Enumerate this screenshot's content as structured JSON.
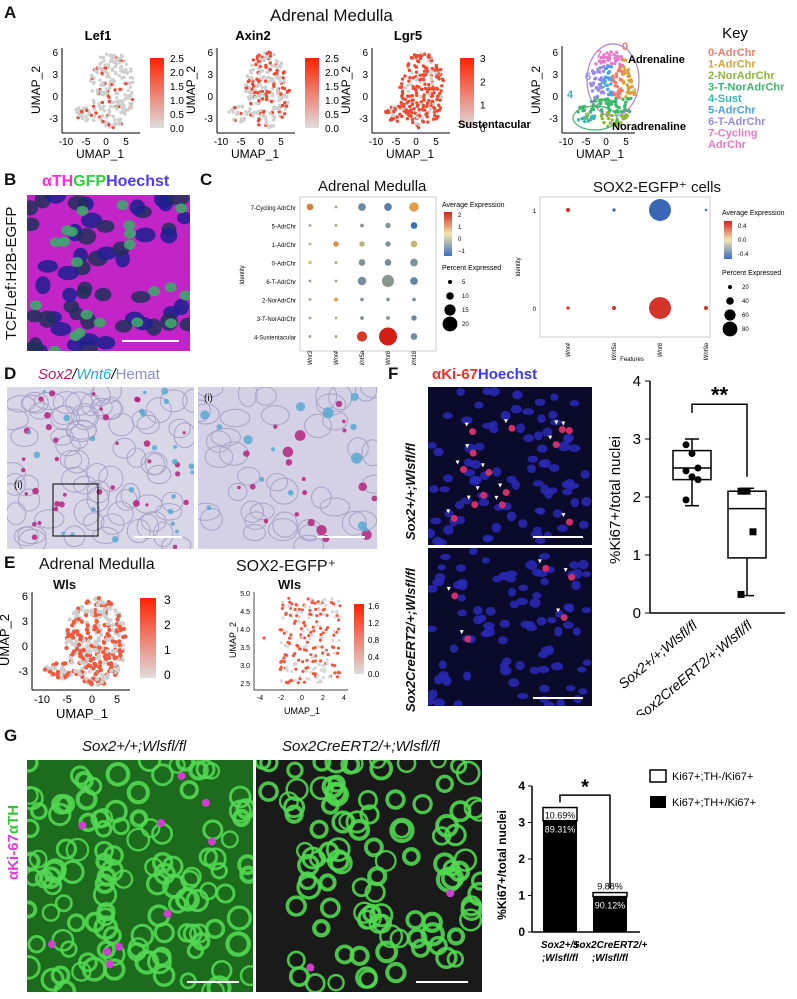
{
  "panels": {
    "A": {
      "letter": "A",
      "title": "Adrenal Medulla",
      "umaps": [
        {
          "gene": "Lef1",
          "scale_ticks": [
            "2.5",
            "2.0",
            "1.5",
            "1.0",
            "0.5",
            "0.0"
          ]
        },
        {
          "gene": "Axin2",
          "scale_ticks": [
            "2.5",
            "2.0",
            "1.5",
            "1.0",
            "0.5",
            "0.0"
          ]
        },
        {
          "gene": "Lgr5",
          "scale_ticks": [
            "3",
            "2",
            "1",
            "0"
          ]
        }
      ],
      "key_title": "Key",
      "xlabel": "UMAP_1",
      "ylabel": "UMAP_2",
      "x_ticks": [
        "-10",
        "-5",
        "0",
        "5"
      ],
      "y_ticks": [
        "6",
        "3",
        "0",
        "-3"
      ],
      "key_regions": {
        "adr": "Adrenaline",
        "sus": "Sustentacular",
        "nor": "Noradrenaline"
      },
      "key_cluster_numbers": [
        "0",
        "1",
        "2",
        "3",
        "4",
        "5",
        "6",
        "7"
      ],
      "key_legend": [
        {
          "label": "0-AdrChr",
          "color": "#f07c6c"
        },
        {
          "label": "1-AdrChr",
          "color": "#d9a23a"
        },
        {
          "label": "2-NorAdrChr",
          "color": "#8bb83a"
        },
        {
          "label": "3-T-NorAdrChr",
          "color": "#3fb66c"
        },
        {
          "label": "4-Sust",
          "color": "#35b9b0"
        },
        {
          "label": "5-AdrChr",
          "color": "#4aa3e0"
        },
        {
          "label": "6-T-AdrChr",
          "color": "#9b8ce0"
        },
        {
          "label": "7-Cycling",
          "color": "#e67ac6"
        },
        {
          "label": "AdrChr",
          "color": "#e67ac6"
        }
      ]
    },
    "B": {
      "letter": "B",
      "stain": {
        "a": "αTH",
        "b": "GFP",
        "c": "Hoechst"
      },
      "side_label": "TCF/Lef:H2B-EGFP"
    },
    "C": {
      "letter": "C",
      "left_title": "Adrenal Medulla",
      "right_title": "SOX2-EGFP⁺ cells",
      "ylabel": "Identity",
      "xlabel": "Features",
      "avg_expr_title": "Average Expression",
      "pct_expr_title": "Percent Expressed",
      "left_avg_ticks": [
        "2",
        "1",
        "0",
        "−1"
      ],
      "left_pct_ticks": [
        "5",
        "10",
        "15",
        "20"
      ],
      "right_avg_ticks": [
        "0.4",
        "0.0",
        "-0.4"
      ],
      "right_pct_ticks": [
        "20",
        "40",
        "60",
        "80"
      ]
    },
    "D": {
      "letter": "D",
      "stain": {
        "a": "Sox2",
        "sep1": "/",
        "b": "Wnt6",
        "sep2": "/",
        "c": "Hemat"
      },
      "inset_label": "(i)",
      "inset_label2": "(i)"
    },
    "E": {
      "letter": "E",
      "left_title": "Adrenal Medulla",
      "left_gene": "Wls",
      "right_title": "SOX2-EGFP⁺",
      "right_gene": "Wls",
      "xlabel": "UMAP_1",
      "ylabel": "UMAP_2",
      "left_scale": [
        "3",
        "2",
        "1",
        "0"
      ],
      "right_scale": [
        "1.6",
        "1.2",
        "0.8",
        "0.4",
        "0.0"
      ],
      "left_x_ticks": [
        "-10",
        "-5",
        "0",
        "5"
      ],
      "left_y_ticks": [
        "6",
        "3",
        "0",
        "-3"
      ],
      "right_x_ticks": [
        "-4",
        "-2",
        "0",
        "2",
        "4"
      ],
      "right_y_ticks": [
        "5.0",
        "4.5",
        "4.0",
        "3.5",
        "3.0",
        "2.5"
      ]
    },
    "F": {
      "letter": "F",
      "stain": {
        "a": "αKi-67",
        "b": "Hoechst"
      },
      "row1_label": "Sox2+/+;Wlsfl/fl",
      "row2_label": "Sox2CreERT2/+;Wlsfl/fl",
      "ylabel": "%Ki67+/total nuclei",
      "significance": "**",
      "y_ticks": [
        "0",
        "1",
        "2",
        "3",
        "4"
      ],
      "x_labels": [
        "Sox2+/+;Wlsfl/fl",
        "Sox2CreERT2/+;Wlsfl/fl"
      ]
    },
    "G": {
      "letter": "G",
      "col1_label": "Sox2+/+;Wlsfl/fl",
      "col2_label": "Sox2CreERT2/+;Wlsfl/fl",
      "side_stain": {
        "a": "αKi-67",
        "b": "αTH"
      },
      "ylabel": "%Ki67+/total nuclei",
      "significance": "*",
      "legend": [
        "Ki67+;TH-/Ki67+",
        "Ki67+;TH+/Ki67+"
      ],
      "bar_labels": [
        {
          "top": "10.69%",
          "bottom": "89.31%"
        },
        {
          "top": "9.88%",
          "bottom": "90.12%"
        }
      ],
      "x_labels": [
        {
          "line1": "Sox2+/+",
          "line2": ";Wlsfl/fl"
        },
        {
          "line1": "Sox2CreERT2/+",
          "line2": ";Wlsfl/fl"
        }
      ],
      "y_ticks": [
        "0",
        "1",
        "2",
        "3",
        "4"
      ]
    }
  },
  "chart_data": [
    {
      "type": "scatter",
      "title": "Adrenal Medulla dot plot",
      "xlabel": "Features",
      "ylabel": "Identity",
      "features": [
        "Wnt3",
        "Wnt4",
        "Wnt5a",
        "Wnt6",
        "Wnt16"
      ],
      "identities": [
        "7-Cycling AdrChr",
        "5-AdrChr",
        "1-AdrChr",
        "0-AdrChr",
        "6-T-AdrChr",
        "2-NorAdrChr",
        "3-T-NorAdrChr",
        "4-Sustentacular"
      ],
      "points": [
        {
          "identity": "7-Cycling AdrChr",
          "feature": "Wnt3",
          "pct": 3,
          "avg": 1.5
        },
        {
          "identity": "7-Cycling AdrChr",
          "feature": "Wnt4",
          "pct": 0.5,
          "avg": 0
        },
        {
          "identity": "7-Cycling AdrChr",
          "feature": "Wnt5a",
          "pct": 4,
          "avg": -0.5
        },
        {
          "identity": "7-Cycling AdrChr",
          "feature": "Wnt6",
          "pct": 4,
          "avg": -0.7
        },
        {
          "identity": "7-Cycling AdrChr",
          "feature": "Wnt16",
          "pct": 6,
          "avg": 1.2
        },
        {
          "identity": "5-AdrChr",
          "feature": "Wnt3",
          "pct": 0.5,
          "avg": 0
        },
        {
          "identity": "5-AdrChr",
          "feature": "Wnt4",
          "pct": 0.5,
          "avg": 0
        },
        {
          "identity": "5-AdrChr",
          "feature": "Wnt5a",
          "pct": 1,
          "avg": -0.2
        },
        {
          "identity": "5-AdrChr",
          "feature": "Wnt6",
          "pct": 2,
          "avg": -0.3
        },
        {
          "identity": "5-AdrChr",
          "feature": "Wnt16",
          "pct": 3,
          "avg": -1
        },
        {
          "identity": "1-AdrChr",
          "feature": "Wnt3",
          "pct": 0.5,
          "avg": 0.2
        },
        {
          "identity": "1-AdrChr",
          "feature": "Wnt4",
          "pct": 2,
          "avg": 1.4
        },
        {
          "identity": "1-AdrChr",
          "feature": "Wnt5a",
          "pct": 2,
          "avg": 0.3
        },
        {
          "identity": "1-AdrChr",
          "feature": "Wnt6",
          "pct": 2,
          "avg": -0.3
        },
        {
          "identity": "1-AdrChr",
          "feature": "Wnt16",
          "pct": 3,
          "avg": 0.4
        },
        {
          "identity": "0-AdrChr",
          "feature": "Wnt3",
          "pct": 1,
          "avg": 0.7
        },
        {
          "identity": "0-AdrChr",
          "feature": "Wnt4",
          "pct": 0.5,
          "avg": 0
        },
        {
          "identity": "0-AdrChr",
          "feature": "Wnt5a",
          "pct": 3,
          "avg": -0.3
        },
        {
          "identity": "0-AdrChr",
          "feature": "Wnt6",
          "pct": 3,
          "avg": -0.4
        },
        {
          "identity": "0-AdrChr",
          "feature": "Wnt16",
          "pct": 4,
          "avg": -0.3
        },
        {
          "identity": "6-T-AdrChr",
          "feature": "Wnt3",
          "pct": 0.5,
          "avg": 0
        },
        {
          "identity": "6-T-AdrChr",
          "feature": "Wnt4",
          "pct": 0.5,
          "avg": 0
        },
        {
          "identity": "6-T-AdrChr",
          "feature": "Wnt5a",
          "pct": 5,
          "avg": -0.4
        },
        {
          "identity": "6-T-AdrChr",
          "feature": "Wnt6",
          "pct": 10,
          "avg": -0.2
        },
        {
          "identity": "6-T-AdrChr",
          "feature": "Wnt16",
          "pct": 4,
          "avg": -0.6
        },
        {
          "identity": "2-NorAdrChr",
          "feature": "Wnt3",
          "pct": 0.5,
          "avg": 0
        },
        {
          "identity": "2-NorAdrChr",
          "feature": "Wnt4",
          "pct": 1,
          "avg": 1.2
        },
        {
          "identity": "2-NorAdrChr",
          "feature": "Wnt5a",
          "pct": 1,
          "avg": -0.2
        },
        {
          "identity": "2-NorAdrChr",
          "feature": "Wnt6",
          "pct": 1,
          "avg": -0.2
        },
        {
          "identity": "2-NorAdrChr",
          "feature": "Wnt16",
          "pct": 1,
          "avg": -0.3
        },
        {
          "identity": "3-T-NorAdrChr",
          "feature": "Wnt3",
          "pct": 0.5,
          "avg": 0
        },
        {
          "identity": "3-T-NorAdrChr",
          "feature": "Wnt4",
          "pct": 0.5,
          "avg": 0.3
        },
        {
          "identity": "3-T-NorAdrChr",
          "feature": "Wnt5a",
          "pct": 1,
          "avg": -0.3
        },
        {
          "identity": "3-T-NorAdrChr",
          "feature": "Wnt6",
          "pct": 1,
          "avg": -0.3
        },
        {
          "identity": "3-T-NorAdrChr",
          "feature": "Wnt16",
          "pct": 2,
          "avg": -0.5
        },
        {
          "identity": "4-Sustentacular",
          "feature": "Wnt3",
          "pct": 0.5,
          "avg": 0
        },
        {
          "identity": "4-Sustentacular",
          "feature": "Wnt4",
          "pct": 0.5,
          "avg": 0
        },
        {
          "identity": "4-Sustentacular",
          "feature": "Wnt5a",
          "pct": 7,
          "avg": 2.2
        },
        {
          "identity": "4-Sustentacular",
          "feature": "Wnt6",
          "pct": 22,
          "avg": 2.5
        },
        {
          "identity": "4-Sustentacular",
          "feature": "Wnt16",
          "pct": 3,
          "avg": -0.4
        }
      ],
      "avg_range": [
        -1,
        2.5
      ],
      "pct_range": [
        0,
        22
      ]
    },
    {
      "type": "scatter",
      "title": "SOX2-EGFP⁺ cells dot plot",
      "xlabel": "Features",
      "ylabel": "Identity",
      "features": [
        "Wnt4",
        "Wnt5a",
        "Wnt6",
        "Wnt9a"
      ],
      "identities": [
        "1",
        "0"
      ],
      "points": [
        {
          "identity": "1",
          "feature": "Wnt4",
          "pct": 3,
          "avg": 0.5
        },
        {
          "identity": "1",
          "feature": "Wnt5a",
          "pct": 2,
          "avg": -0.4
        },
        {
          "identity": "1",
          "feature": "Wnt6",
          "pct": 85,
          "avg": -0.5
        },
        {
          "identity": "1",
          "feature": "Wnt9a",
          "pct": 1,
          "avg": 0
        },
        {
          "identity": "0",
          "feature": "Wnt4",
          "pct": 2,
          "avg": 0.5
        },
        {
          "identity": "0",
          "feature": "Wnt5a",
          "pct": 3,
          "avg": 0.5
        },
        {
          "identity": "0",
          "feature": "Wnt6",
          "pct": 85,
          "avg": 0.5
        },
        {
          "identity": "0",
          "feature": "Wnt9a",
          "pct": 3,
          "avg": 0.5
        }
      ],
      "avg_range": [
        -0.5,
        0.5
      ],
      "pct_range": [
        0,
        85
      ]
    },
    {
      "type": "bar",
      "title": "",
      "ylabel": "%Ki67+/total nuclei",
      "categories": [
        "Sox2+/+;Wlsfl/fl",
        "Sox2CreERT2/+;Wlsfl/fl"
      ],
      "box": [
        {
          "min": 1.85,
          "q1": 2.3,
          "median": 2.5,
          "q3": 2.8,
          "max": 3.0,
          "points": [
            2.9,
            2.75,
            2.5,
            2.45,
            2.35,
            2.3,
            1.95
          ]
        },
        {
          "min": 0.3,
          "q1": 0.95,
          "median": 1.8,
          "q3": 2.1,
          "max": 2.15,
          "points": [
            2.1,
            2.1,
            1.4,
            0.32
          ]
        }
      ],
      "ylim": [
        0,
        4
      ]
    },
    {
      "type": "bar",
      "title": "",
      "ylabel": "%Ki67+/total nuclei",
      "categories": [
        "Sox2+/+;Wlsfl/fl",
        "Sox2CreERT2/+;Wlsfl/fl"
      ],
      "series": [
        {
          "name": "Ki67+;TH+/Ki67+",
          "values": [
            3.05,
            0.97
          ]
        },
        {
          "name": "Ki67+;TH-/Ki67+",
          "values": [
            0.36,
            0.11
          ]
        }
      ],
      "ylim": [
        0,
        4
      ]
    }
  ]
}
